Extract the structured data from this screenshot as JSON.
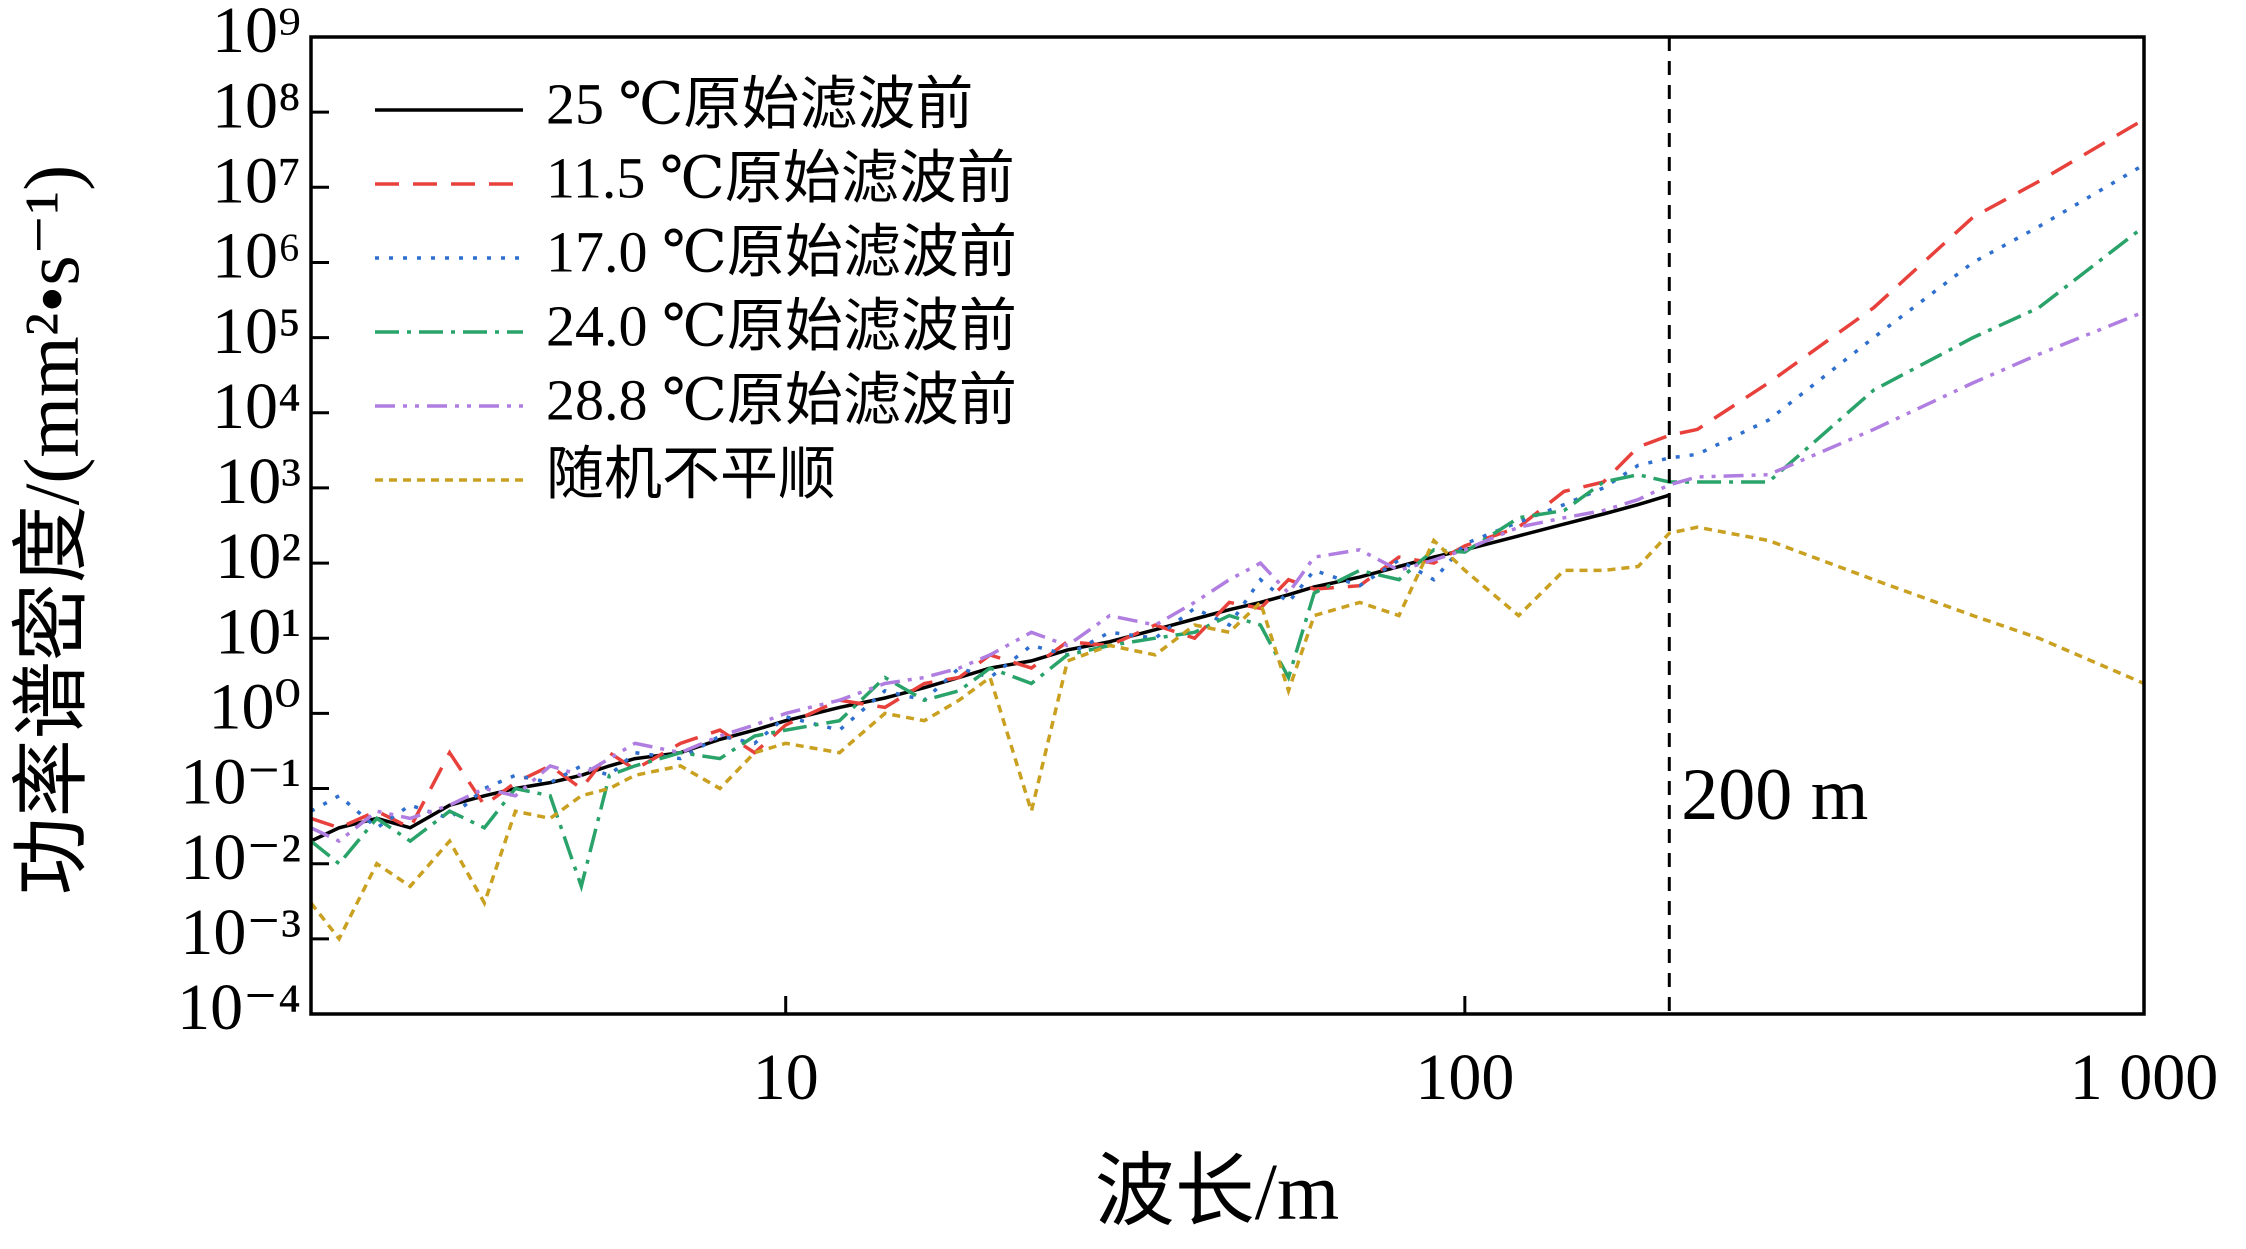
{
  "chart_data": {
    "type": "line",
    "xlabel": "波长/m",
    "ylabel": "功率谱密度/(mm²•s⁻¹)",
    "xscale": "log",
    "yscale": "log",
    "xlim": [
      2,
      1000
    ],
    "ylim": [
      0.0001,
      1000000000
    ],
    "xticks": [
      10,
      100,
      {
        "value": 1000,
        "label": "1 000"
      }
    ],
    "yticks": [
      {
        "value": 0.0001,
        "label": "10⁻⁴"
      },
      {
        "value": 0.001,
        "label": "10⁻³"
      },
      {
        "value": 0.01,
        "label": "10⁻²"
      },
      {
        "value": 0.1,
        "label": "10⁻¹"
      },
      {
        "value": 1,
        "label": "10⁰"
      },
      {
        "value": 10,
        "label": "10¹"
      },
      {
        "value": 100,
        "label": "10²"
      },
      {
        "value": 1000,
        "label": "10³"
      },
      {
        "value": 10000,
        "label": "10⁴"
      },
      {
        "value": 100000,
        "label": "10⁵"
      },
      {
        "value": 1000000,
        "label": "10⁶"
      },
      {
        "value": 10000000,
        "label": "10⁷"
      },
      {
        "value": 100000000,
        "label": "10⁸"
      },
      {
        "value": 1000000000,
        "label": "10⁹"
      }
    ],
    "legend": "upper left",
    "vline": {
      "x": 200,
      "label": "200 m",
      "color": "#000000"
    },
    "x": [
      2,
      2.2,
      2.5,
      2.8,
      3.2,
      3.6,
      4,
      4.5,
      5,
      5.5,
      6,
      7,
      8,
      9,
      10,
      12,
      14,
      16,
      18,
      20,
      23,
      26,
      30,
      35,
      40,
      45,
      50,
      55,
      60,
      70,
      80,
      90,
      100,
      120,
      140,
      160,
      180,
      200,
      220,
      280,
      400,
      560,
      700,
      1000
    ],
    "series": [
      {
        "name": "25 ℃原始滤波前",
        "color": "#000000",
        "dash": "none",
        "values": [
          0.02,
          0.03,
          0.04,
          0.03,
          0.06,
          0.08,
          0.1,
          0.12,
          0.15,
          0.2,
          0.25,
          0.3,
          0.45,
          0.6,
          0.8,
          1.2,
          1.6,
          2.2,
          3,
          4,
          5,
          7,
          9,
          13,
          18,
          24,
          30,
          38,
          48,
          65,
          90,
          120,
          150,
          230,
          330,
          450,
          600,
          800,
          null,
          null,
          null,
          null,
          null,
          null
        ]
      },
      {
        "name": "11.5 ℃原始滤波前",
        "color": "#e8413c",
        "dash": "24 14",
        "values": [
          0.04,
          0.03,
          0.05,
          0.03,
          0.3,
          0.06,
          0.12,
          0.2,
          0.1,
          0.3,
          0.18,
          0.4,
          0.6,
          0.3,
          0.7,
          1.5,
          1.2,
          2.5,
          3,
          6,
          4,
          9,
          8,
          15,
          10,
          30,
          25,
          60,
          45,
          50,
          120,
          100,
          170,
          300,
          900,
          1200,
          3500,
          5000,
          6000,
          25000,
          250000,
          4000000,
          12000000,
          80000000
        ]
      },
      {
        "name": "17.0 ℃原始滤波前",
        "color": "#2f6fce",
        "dash": "4 10",
        "values": [
          0.05,
          0.08,
          0.03,
          0.06,
          0.04,
          0.1,
          0.15,
          0.12,
          0.2,
          0.15,
          0.3,
          0.25,
          0.5,
          0.4,
          0.9,
          0.6,
          2,
          1.5,
          4,
          3,
          8,
          6,
          12,
          10,
          25,
          15,
          60,
          30,
          80,
          50,
          110,
          60,
          180,
          350,
          600,
          1000,
          2000,
          2500,
          2800,
          8000,
          100000,
          1000000,
          3000000,
          20000000
        ]
      },
      {
        "name": "24.0 ℃原始滤波前",
        "color": "#2aa36a",
        "dash": "24 8 4 8",
        "values": [
          0.02,
          0.01,
          0.04,
          0.02,
          0.05,
          0.03,
          0.1,
          0.08,
          0.005,
          0.15,
          0.2,
          0.3,
          0.25,
          0.5,
          0.6,
          0.8,
          3,
          1.5,
          2,
          4,
          2.5,
          6,
          8,
          10,
          12,
          20,
          15,
          3,
          40,
          80,
          60,
          150,
          140,
          400,
          500,
          1200,
          1500,
          1200,
          1200,
          1200,
          20000,
          100000,
          250000,
          3000000
        ]
      },
      {
        "name": "28.8 ℃原始滤波前",
        "color": "#b07ee0",
        "dash": "20 8 4 8 4 8",
        "values": [
          0.03,
          0.02,
          0.05,
          0.04,
          0.06,
          0.1,
          0.08,
          0.2,
          0.15,
          0.25,
          0.4,
          0.3,
          0.5,
          0.7,
          1,
          1.5,
          2.5,
          3,
          4,
          6,
          12,
          8,
          20,
          15,
          30,
          60,
          100,
          40,
          120,
          150,
          80,
          110,
          150,
          300,
          400,
          500,
          700,
          1100,
          1400,
          1500,
          6000,
          25000,
          60000,
          220000
        ]
      },
      {
        "name": "随机不平顺",
        "color": "#c9a020",
        "dash": "8 6",
        "values": [
          0.003,
          0.001,
          0.01,
          0.005,
          0.02,
          0.003,
          0.05,
          0.04,
          0.08,
          0.1,
          0.15,
          0.2,
          0.1,
          0.3,
          0.4,
          0.3,
          1,
          0.8,
          1.5,
          3,
          0.05,
          5,
          8,
          6,
          15,
          12,
          30,
          2,
          20,
          30,
          20,
          200,
          80,
          20,
          80,
          80,
          90,
          250,
          300,
          200,
          60,
          20,
          10,
          2.5
        ]
      }
    ]
  }
}
